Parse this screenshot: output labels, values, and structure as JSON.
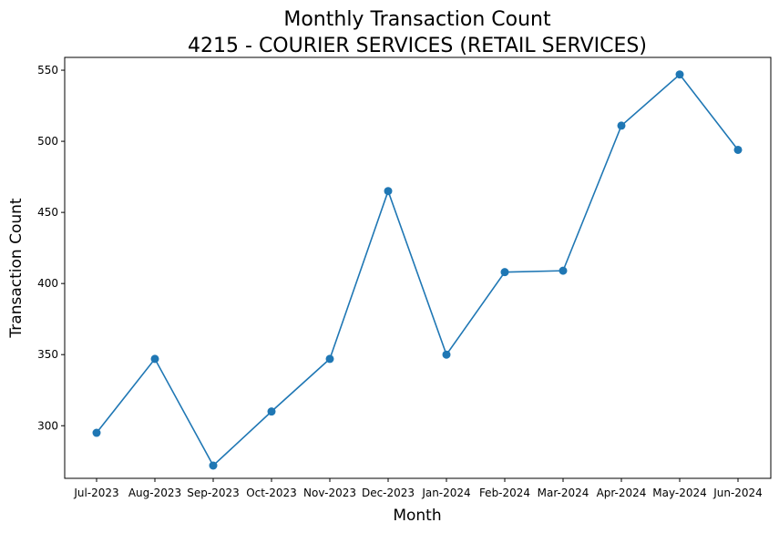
{
  "chart_data": {
    "type": "line",
    "title": "Monthly Transaction Count",
    "subtitle": "4215 - COURIER SERVICES (RETAIL SERVICES)",
    "xlabel": "Month",
    "ylabel": "Transaction Count",
    "categories": [
      "Jul-2023",
      "Aug-2023",
      "Sep-2023",
      "Oct-2023",
      "Nov-2023",
      "Dec-2023",
      "Jan-2024",
      "Feb-2024",
      "Mar-2024",
      "Apr-2024",
      "May-2024",
      "Jun-2024"
    ],
    "series": [
      {
        "values": [
          295,
          347,
          272,
          310,
          347,
          465,
          350,
          408,
          409,
          511,
          547,
          494
        ],
        "color": "#1f77b4"
      }
    ],
    "ylim": [
      263,
      559
    ],
    "yticks": [
      300,
      350,
      400,
      450,
      500,
      550
    ],
    "grid": false,
    "legend": "none"
  }
}
